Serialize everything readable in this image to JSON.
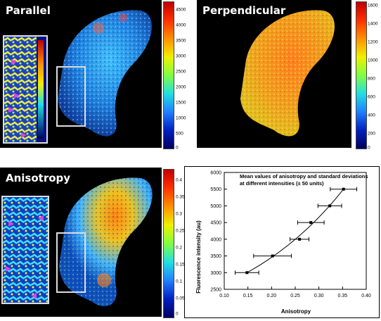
{
  "panels": {
    "parallel": {
      "title": "Parallel",
      "scale": [
        "4500",
        "4000",
        "3500",
        "3000",
        "2500",
        "2000",
        "1500",
        "1000",
        "500",
        "0"
      ]
    },
    "perpendicular": {
      "title": "Perpendicular",
      "scale": [
        "1600",
        "1400",
        "1200",
        "1000",
        "800",
        "600",
        "400",
        "200",
        "0"
      ]
    },
    "anisotropy": {
      "title": "Anisotropy",
      "scale": [
        "0.4",
        "0.35",
        "0.3",
        "0.25",
        "0.2",
        "0.15",
        "0.1",
        "0.05",
        "0"
      ]
    }
  },
  "colors": {
    "parallel_main": "#3aa0ff",
    "perpendicular_main": "#f0a020",
    "anisotropy_main": "#40b0ff",
    "arrow": "#e040e0"
  },
  "chart_data": {
    "type": "scatter",
    "title": "Mean values of anisotropy and standard deviations at different intensities (± 50 units)",
    "xlabel": "Anisotropy",
    "ylabel": "Fluorescence intensity (au)",
    "xlim": [
      0.1,
      0.4
    ],
    "ylim": [
      2500,
      6000
    ],
    "xticks": [
      "0.10",
      "0.15",
      "0.20",
      "0.25",
      "0.30",
      "0.35",
      "0.40"
    ],
    "yticks": [
      "2500",
      "3000",
      "3500",
      "4000",
      "4500",
      "5000",
      "5500",
      "6000"
    ],
    "points": [
      {
        "x": 0.148,
        "y": 3000,
        "xerr": 0.025
      },
      {
        "x": 0.202,
        "y": 3500,
        "xerr": 0.04
      },
      {
        "x": 0.259,
        "y": 4000,
        "xerr": 0.02
      },
      {
        "x": 0.283,
        "y": 4500,
        "xerr": 0.028
      },
      {
        "x": 0.323,
        "y": 5000,
        "xerr": 0.025
      },
      {
        "x": 0.352,
        "y": 5500,
        "xerr": 0.028
      }
    ],
    "fit": true
  }
}
